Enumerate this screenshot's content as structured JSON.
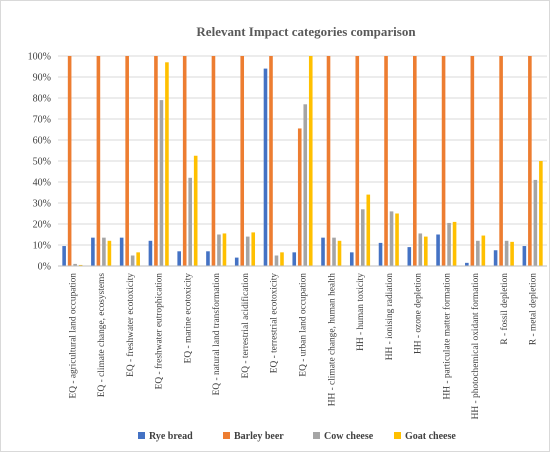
{
  "chart_data": {
    "type": "bar",
    "title": "Relevant Impact categories comparison",
    "xlabel": "",
    "ylabel": "",
    "ylim": [
      0,
      100
    ],
    "y_ticks": [
      "0%",
      "10%",
      "20%",
      "30%",
      "40%",
      "50%",
      "60%",
      "70%",
      "80%",
      "90%",
      "100%"
    ],
    "grid": true,
    "legend_position": "bottom",
    "categories": [
      "EQ - agricultural land occupation",
      "EQ - climate change, ecosystems",
      "EQ - freshwater ecotoxicity",
      "EQ - freshwater eutrophication",
      "EQ - marine ecotoxicity",
      "EQ - natural land transformation",
      "EQ - terrestrial acidification",
      "EQ - terrestrial ecotoxicity",
      "EQ - urban land occupation",
      "HH - climate change, human health",
      "HH - human toxicity",
      "HH - ionising radiation",
      "HH - ozone depletion",
      "HH - particulate matter formation",
      "HH - photochemical oxidant formation",
      "R - fossil depletion",
      "R - metal depletion"
    ],
    "series": [
      {
        "name": "Rye bread",
        "color": "#4472c4",
        "values": [
          9.5,
          13.5,
          13.5,
          12,
          7,
          7,
          4,
          94,
          6.5,
          13.5,
          6.5,
          11,
          9,
          15,
          1.5,
          7.5,
          9.5
        ]
      },
      {
        "name": "Barley beer",
        "color": "#ed7d31",
        "values": [
          100,
          100,
          100,
          100,
          100,
          100,
          100,
          100,
          65.5,
          100,
          100,
          100,
          100,
          100,
          100,
          100,
          100
        ]
      },
      {
        "name": "Cow cheese",
        "color": "#a5a5a5",
        "values": [
          1,
          13.5,
          5,
          79,
          42,
          15,
          14,
          5,
          77,
          13.5,
          27,
          26,
          15.5,
          20.5,
          12,
          12,
          41
        ]
      },
      {
        "name": "Goat cheese",
        "color": "#ffc000",
        "values": [
          0.5,
          12,
          6.5,
          97,
          52.5,
          15.5,
          16,
          6.5,
          100,
          12,
          34,
          25,
          14,
          21,
          14.5,
          11.5,
          50
        ]
      }
    ]
  }
}
